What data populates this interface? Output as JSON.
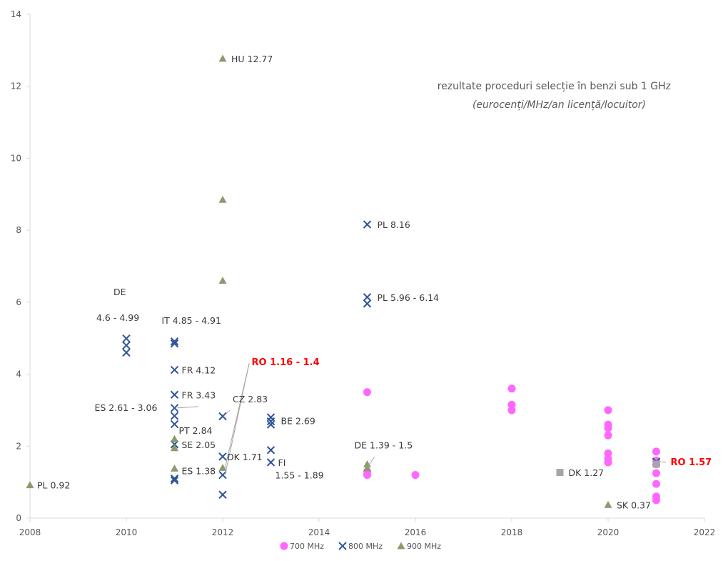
{
  "chart_data": {
    "type": "scatter",
    "title": "rezultate proceduri selecție în benzi sub 1 GHz",
    "subtitle": "(eurocenți/MHz/an licență/locuitor)",
    "xlabel": "",
    "ylabel": "",
    "xlim": [
      2008,
      2022
    ],
    "ylim": [
      0,
      14
    ],
    "x_ticks": [
      2008,
      2010,
      2012,
      2014,
      2016,
      2018,
      2020,
      2022
    ],
    "y_ticks": [
      0,
      2,
      4,
      6,
      8,
      10,
      12,
      14
    ],
    "grid": false,
    "legend_position": "bottom",
    "series": [
      {
        "name": "700 MHz",
        "marker": "circle",
        "color": "#ff66ff",
        "points": [
          [
            2015,
            3.5
          ],
          [
            2015,
            1.3
          ],
          [
            2015,
            1.2
          ],
          [
            2016,
            1.2
          ],
          [
            2018,
            3.6
          ],
          [
            2018,
            3.15
          ],
          [
            2018,
            3.0
          ],
          [
            2020,
            3.0
          ],
          [
            2020,
            2.6
          ],
          [
            2020,
            2.5
          ],
          [
            2020,
            2.3
          ],
          [
            2020,
            1.8
          ],
          [
            2020,
            1.65
          ],
          [
            2020,
            1.55
          ],
          [
            2021,
            1.85
          ],
          [
            2021,
            1.6
          ],
          [
            2021,
            1.5
          ],
          [
            2021,
            1.25
          ],
          [
            2021,
            0.95
          ],
          [
            2021,
            0.6
          ],
          [
            2021,
            0.5
          ]
        ]
      },
      {
        "name": "800 MHz",
        "marker": "x",
        "color": "#2f5597",
        "points": [
          [
            2010,
            4.99
          ],
          [
            2010,
            4.8
          ],
          [
            2010,
            4.6
          ],
          [
            2011,
            4.91
          ],
          [
            2011,
            4.85
          ],
          [
            2011,
            4.12
          ],
          [
            2011,
            3.43
          ],
          [
            2011,
            3.06
          ],
          [
            2011,
            2.84
          ],
          [
            2011,
            2.61
          ],
          [
            2011,
            2.05
          ],
          [
            2011,
            1.1
          ],
          [
            2011,
            1.05
          ],
          [
            2012,
            2.83
          ],
          [
            2012,
            1.71
          ],
          [
            2012,
            1.2
          ],
          [
            2012,
            0.65
          ],
          [
            2013,
            2.8
          ],
          [
            2013,
            2.69
          ],
          [
            2013,
            2.6
          ],
          [
            2013,
            1.89
          ],
          [
            2013,
            1.55
          ],
          [
            2015,
            8.16
          ],
          [
            2015,
            6.14
          ],
          [
            2015,
            5.96
          ],
          [
            2021,
            1.57
          ]
        ]
      },
      {
        "name": "900 MHz",
        "marker": "triangle",
        "color": "#8d9a6d",
        "points": [
          [
            2008,
            0.92
          ],
          [
            2011,
            2.2
          ],
          [
            2011,
            1.95
          ],
          [
            2011,
            1.38
          ],
          [
            2012,
            12.77
          ],
          [
            2012,
            8.85
          ],
          [
            2012,
            6.6
          ],
          [
            2012,
            1.4
          ],
          [
            2015,
            1.5
          ],
          [
            2015,
            1.39
          ],
          [
            2020,
            0.37
          ]
        ]
      },
      {
        "name": "",
        "marker": "square",
        "color": "#a6a6a6",
        "points": [
          [
            2019,
            1.27
          ],
          [
            2021,
            1.5
          ]
        ]
      }
    ],
    "annotations": [
      {
        "text": "PL  0.92",
        "x": 2008,
        "y": 0.92,
        "color": "#3a3a3a"
      },
      {
        "text": "HU  12.77",
        "x": 2012,
        "y": 12.77,
        "color": "#3a3a3a"
      },
      {
        "text": "DE",
        "x": 2010,
        "y": 5.8,
        "color": "#3a3a3a"
      },
      {
        "text": "4.6 -  4.99",
        "x": 2010,
        "y": 5.4,
        "color": "#3a3a3a"
      },
      {
        "text": "IT 4.85 -  4.91",
        "x": 2011,
        "y": 5.3,
        "color": "#3a3a3a"
      },
      {
        "text": "FR  4.12",
        "x": 2011,
        "y": 4.12,
        "color": "#3a3a3a"
      },
      {
        "text": "FR  3.43",
        "x": 2011,
        "y": 3.43,
        "color": "#3a3a3a"
      },
      {
        "text": "ES 2.61 -  3.06",
        "x": 2011,
        "y": 3.06,
        "color": "#3a3a3a"
      },
      {
        "text": "PT  2.84",
        "x": 2011,
        "y": 2.6,
        "color": "#3a3a3a"
      },
      {
        "text": "SE  2.05",
        "x": 2011,
        "y": 2.05,
        "color": "#3a3a3a"
      },
      {
        "text": "ES  1.38",
        "x": 2011,
        "y": 1.38,
        "color": "#3a3a3a"
      },
      {
        "text": "RO   1.16  - 1.4",
        "x": 2012.6,
        "y": 4.35,
        "color": "#ff0000"
      },
      {
        "text": "CZ  2.83",
        "x": 2012,
        "y": 3.1,
        "color": "#3a3a3a"
      },
      {
        "text": "DK 1.71",
        "x": 2012,
        "y": 1.71,
        "color": "#3a3a3a"
      },
      {
        "text": "BE  2.69",
        "x": 2013,
        "y": 2.69,
        "color": "#3a3a3a"
      },
      {
        "text": "FI",
        "x": 2013,
        "y": 1.55,
        "color": "#3a3a3a"
      },
      {
        "text": "1.55 -  1.89",
        "x": 2013,
        "y": 1.1,
        "color": "#3a3a3a"
      },
      {
        "text": "PL  8.16",
        "x": 2015,
        "y": 8.16,
        "color": "#3a3a3a"
      },
      {
        "text": "PL 5.96 -  6.14",
        "x": 2015,
        "y": 6.14,
        "color": "#3a3a3a"
      },
      {
        "text": "DE  1.39  - 1.5",
        "x": 2015,
        "y": 1.9,
        "color": "#3a3a3a"
      },
      {
        "text": "DK  1.27",
        "x": 2019,
        "y": 1.27,
        "color": "#3a3a3a"
      },
      {
        "text": "SK  0.37",
        "x": 2020,
        "y": 0.37,
        "color": "#3a3a3a"
      },
      {
        "text": "RO  1.57",
        "x": 2021,
        "y": 1.57,
        "color": "#ff0000"
      }
    ]
  }
}
